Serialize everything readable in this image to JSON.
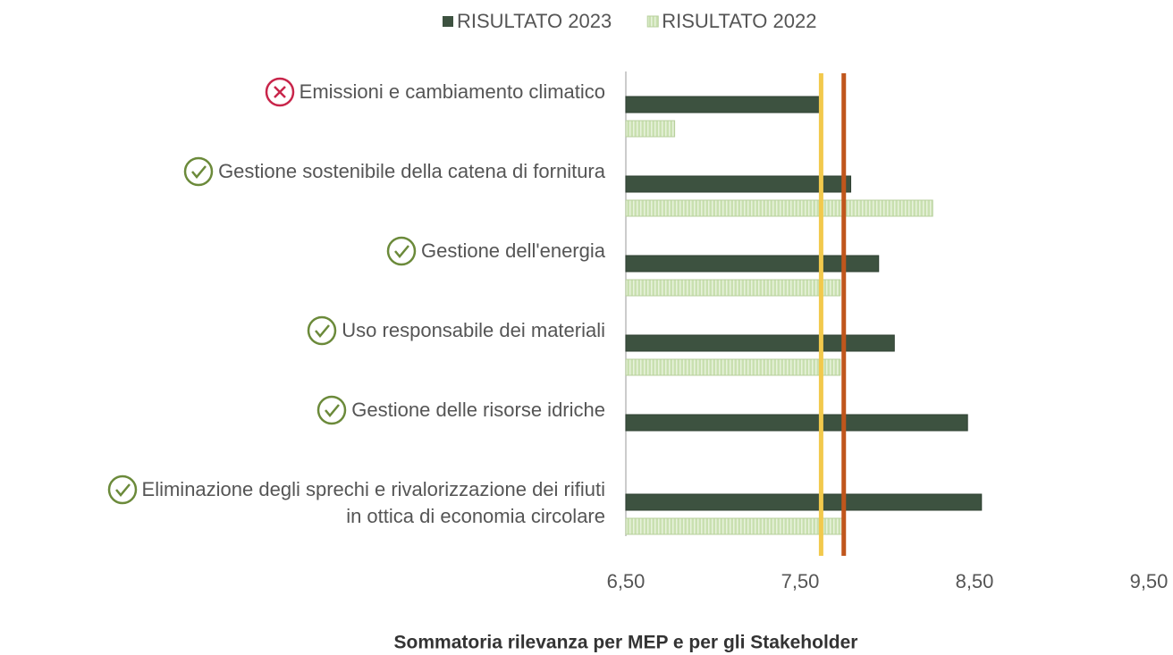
{
  "chart_data": {
    "type": "hbar",
    "xlabel": "Sommatoria rilevanza per MEP e per gli Stakeholder",
    "categories": [
      "Emissioni e cambiamento climatico",
      "Gestione sostenibile della catena di fornitura",
      "Gestione dell'energia",
      "Uso responsabile dei materiali",
      "Gestione delle risorse idriche",
      "Eliminazione degli sprechi e rivalorizzazione dei rifiuti\nin ottica di economia circolare"
    ],
    "icons": [
      "cross",
      "check",
      "check",
      "check",
      "check",
      "check"
    ],
    "series": [
      {
        "name": "RISULTATO 2023",
        "color": "#3d5240",
        "values": [
          7.61,
          7.79,
          7.95,
          8.04,
          8.46,
          8.54
        ]
      },
      {
        "name": "RISULTATO 2022",
        "color": "#c9e0b0",
        "pattern": "stripes",
        "values": [
          6.78,
          8.26,
          7.73,
          7.73,
          null,
          7.74
        ]
      }
    ],
    "reference_lines": [
      {
        "value": 7.62,
        "color": "#f2c94c"
      },
      {
        "value": 7.75,
        "color": "#c0561c"
      }
    ],
    "xlim": [
      6.5,
      9.5
    ],
    "xticks": [
      {
        "value": 6.5,
        "label": "6,50"
      },
      {
        "value": 7.5,
        "label": "7,50"
      },
      {
        "value": 8.5,
        "label": "8,50"
      },
      {
        "value": 9.5,
        "label": "9,50"
      }
    ],
    "legend": "top",
    "grid": false
  }
}
